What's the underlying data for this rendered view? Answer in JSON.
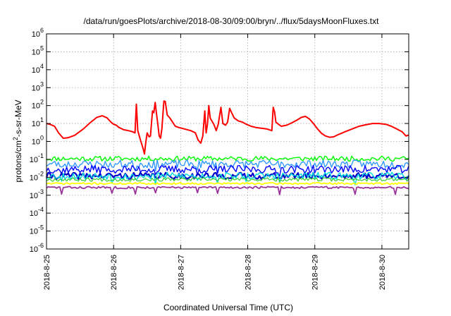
{
  "chart_data": {
    "type": "line",
    "title": "/data/run/goesPlots/archive/2018-08-30/09:00/bryn/../flux/5daysMoonFluxes.txt",
    "xlabel": "Coordinated Universal Time (UTC)",
    "ylabel_parts": {
      "main": "protons/cm",
      "sup": "2",
      "rest": "-s-sr-MeV"
    },
    "yscale": "log",
    "ylim_exponents": [
      -6,
      6
    ],
    "y_tick_labels": [
      {
        "base": "10",
        "exp": "6"
      },
      {
        "base": "10",
        "exp": "5"
      },
      {
        "base": "10",
        "exp": "4"
      },
      {
        "base": "10",
        "exp": "3"
      },
      {
        "base": "10",
        "exp": "2"
      },
      {
        "base": "10",
        "exp": "1"
      },
      {
        "base": "10",
        "exp": "0"
      },
      {
        "base": "10",
        "exp": "-1"
      },
      {
        "base": "10",
        "exp": "-2"
      },
      {
        "base": "10",
        "exp": "-3"
      },
      {
        "base": "10",
        "exp": "-4"
      },
      {
        "base": "10",
        "exp": "-5"
      },
      {
        "base": "10",
        "exp": "-6"
      }
    ],
    "xlim_days": [
      0,
      5.4
    ],
    "x_ticks": [
      "2018-8-25",
      "2018-8-26",
      "2018-8-27",
      "2018-8-28",
      "2018-8-29",
      "2018-8-30"
    ],
    "grid": true,
    "legend": "none",
    "series": [
      {
        "color": "#ff0000",
        "width": 2,
        "points": [
          [
            0.0,
            10
          ],
          [
            0.05,
            9
          ],
          [
            0.12,
            7
          ],
          [
            0.18,
            3
          ],
          [
            0.25,
            1.5
          ],
          [
            0.32,
            1.6
          ],
          [
            0.42,
            2.2
          ],
          [
            0.55,
            5
          ],
          [
            0.65,
            11
          ],
          [
            0.75,
            22
          ],
          [
            0.83,
            27
          ],
          [
            0.9,
            21
          ],
          [
            0.96,
            12
          ],
          [
            1.0,
            9
          ],
          [
            1.04,
            8
          ],
          [
            1.08,
            6
          ],
          [
            1.15,
            4.5
          ],
          [
            1.22,
            4
          ],
          [
            1.28,
            3.5
          ],
          [
            1.32,
            3
          ],
          [
            1.34,
            120
          ],
          [
            1.36,
            4
          ],
          [
            1.4,
            1.2
          ],
          [
            1.44,
            0.4
          ],
          [
            1.46,
            0.2
          ],
          [
            1.48,
            0.9
          ],
          [
            1.5,
            3
          ],
          [
            1.53,
            1.8
          ],
          [
            1.55,
            2
          ],
          [
            1.58,
            50
          ],
          [
            1.6,
            40
          ],
          [
            1.62,
            150
          ],
          [
            1.64,
            35
          ],
          [
            1.66,
            9
          ],
          [
            1.68,
            2
          ],
          [
            1.7,
            1.5
          ],
          [
            1.72,
            5
          ],
          [
            1.75,
            180
          ],
          [
            1.77,
            170
          ],
          [
            1.8,
            30
          ],
          [
            1.84,
            20
          ],
          [
            1.88,
            12
          ],
          [
            1.92,
            7
          ],
          [
            1.97,
            6
          ],
          [
            2.05,
            5
          ],
          [
            2.15,
            4
          ],
          [
            2.22,
            3
          ],
          [
            2.26,
            1.2
          ],
          [
            2.3,
            0.8
          ],
          [
            2.33,
            2
          ],
          [
            2.36,
            50
          ],
          [
            2.38,
            3
          ],
          [
            2.4,
            9
          ],
          [
            2.42,
            100
          ],
          [
            2.44,
            20
          ],
          [
            2.47,
            13
          ],
          [
            2.5,
            8
          ],
          [
            2.53,
            4
          ],
          [
            2.56,
            9
          ],
          [
            2.6,
            80
          ],
          [
            2.63,
            10
          ],
          [
            2.67,
            8
          ],
          [
            2.7,
            12
          ],
          [
            2.73,
            70
          ],
          [
            2.76,
            40
          ],
          [
            2.8,
            20
          ],
          [
            2.86,
            14
          ],
          [
            2.92,
            12
          ],
          [
            2.98,
            9
          ],
          [
            3.05,
            7
          ],
          [
            3.12,
            6
          ],
          [
            3.2,
            5.5
          ],
          [
            3.28,
            5
          ],
          [
            3.32,
            4.5
          ],
          [
            3.36,
            4
          ],
          [
            3.38,
            80
          ],
          [
            3.4,
            45
          ],
          [
            3.42,
            12
          ],
          [
            3.46,
            9
          ],
          [
            3.5,
            7
          ],
          [
            3.58,
            8
          ],
          [
            3.66,
            11
          ],
          [
            3.74,
            16
          ],
          [
            3.8,
            22
          ],
          [
            3.86,
            25
          ],
          [
            3.92,
            18
          ],
          [
            3.98,
            10
          ],
          [
            4.04,
            5
          ],
          [
            4.1,
            2.8
          ],
          [
            4.16,
            2
          ],
          [
            4.22,
            1.7
          ],
          [
            4.28,
            1.8
          ],
          [
            4.36,
            2.5
          ],
          [
            4.46,
            3.6
          ],
          [
            4.56,
            5
          ],
          [
            4.66,
            7
          ],
          [
            4.76,
            8.5
          ],
          [
            4.86,
            10
          ],
          [
            4.96,
            10
          ],
          [
            5.06,
            9
          ],
          [
            5.14,
            7
          ],
          [
            5.22,
            5
          ],
          [
            5.3,
            3.5
          ],
          [
            5.36,
            2
          ],
          [
            5.4,
            2.3
          ]
        ]
      },
      {
        "color": "#00ff00",
        "width": 1.4,
        "base": 0.11,
        "amp": 0.14,
        "seed": 11,
        "dips": []
      },
      {
        "color": "#3399ff",
        "width": 1.4,
        "base": 0.055,
        "amp": 0.22,
        "seed": 23,
        "dips": [
          0.23,
          0.97,
          1.32,
          1.62,
          2.25,
          2.55,
          3.47
        ]
      },
      {
        "color": "#0000ff",
        "width": 1.4,
        "base": 0.028,
        "amp": 0.22,
        "seed": 37,
        "dips": [
          0.23,
          0.97,
          1.62,
          2.25,
          2.55,
          3.47
        ]
      },
      {
        "color": "#0000cc",
        "width": 2.2,
        "base": 0.012,
        "amp": 0.18,
        "seed": 41,
        "dips": []
      },
      {
        "color": "#00dddd",
        "width": 1.4,
        "base": 0.012,
        "amp": 0.2,
        "seed": 53,
        "dips": [
          0.23,
          0.97,
          1.32,
          1.62,
          2.25,
          2.55,
          2.98,
          3.47,
          4.6
        ]
      },
      {
        "color": "#33cc33",
        "width": 1.2,
        "base": 0.0075,
        "amp": 0.1,
        "seed": 67,
        "dips": []
      },
      {
        "color": "#ffff00",
        "width": 1.8,
        "base": 0.0045,
        "amp": 0.05,
        "seed": 71,
        "dips": []
      },
      {
        "color": "#993399",
        "width": 1.8,
        "base": 0.0027,
        "amp": 0.06,
        "seed": 83,
        "dips": [
          0.23,
          0.97,
          1.32,
          1.62,
          2.25,
          2.55,
          3.47,
          4.6,
          5.2
        ]
      }
    ]
  }
}
